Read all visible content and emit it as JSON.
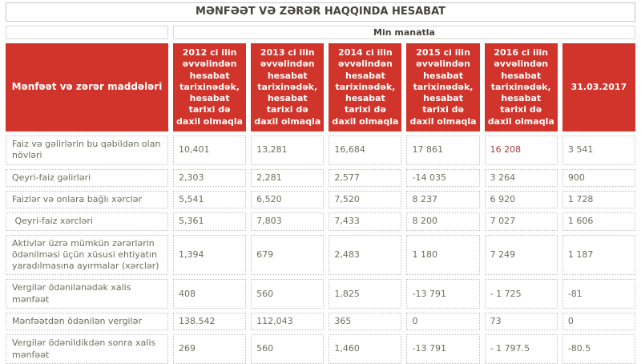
{
  "title": "MƏNFƏƏT VƏ ZƏRƏR HAQQINDA HESABAT",
  "unit_label": "Min manatla",
  "table": {
    "row_header": "Mənfəət və zərər maddələri",
    "col_headers": [
      "2012 ci ilin əvvəlindən hesabat tarixinədək, hesabat tarixi də daxil olmaqla",
      "2013 ci ilin əvvəlindən hesabat tarixinədək, hesabat tarixi də daxil olmaqla",
      "2014 ci ilin əvvəlindən hesabat tarixinədək, hesabat tarixi də daxil olmaqla",
      "2015 ci ilin əvvəlindən hesabat tarixinədək, hesabat tarixi də daxil olmaqla",
      "2016 ci ilin əvvəlindən hesabat tarixinədək, hesabat tarixi də daxil olmaqla",
      "31.03.2017"
    ],
    "rows": [
      {
        "label": "Faiz və gəlirlərin bu qəbildən olan növləri",
        "values": [
          "10,401",
          "13,281",
          "16,684",
          "17 861",
          "16 208",
          "3 541"
        ]
      },
      {
        "label": "Qeyri-faiz gəlirləri",
        "values": [
          "2,303",
          "2,281",
          "2,577",
          "-14 035",
          "3 264",
          "900"
        ]
      },
      {
        "label": "Faizlər və onlara bağlı xərclər",
        "values": [
          "5,541",
          "6,520",
          "7,520",
          "8 237",
          "6 920",
          "1 728"
        ]
      },
      {
        "label": " Qeyri-faiz xərcləri",
        "values": [
          "5,361",
          "7,803",
          "7,433",
          "8 200",
          "7 027",
          "1 606"
        ]
      },
      {
        "label": "Aktivlər üzrə mümkün zərərlərin ödənilməsi üçün xüsusi ehtiyatın yaradılmasına ayırmalar (xərclər)",
        "values": [
          "1,394",
          "679",
          "2,483",
          "1 180",
          "7 249",
          "1 187"
        ]
      },
      {
        "label": "Vergilər ödənilənədək xalis mənfəət",
        "values": [
          "408",
          "560",
          "1,825",
          "-13 791",
          "- 1 725",
          "-81"
        ]
      },
      {
        "label": "Mənfəətdən ödənilən vergilər",
        "values": [
          "138.542",
          "112,043",
          "365",
          "0",
          "73",
          "0"
        ]
      },
      {
        "label": "Vergilər ödənildikdən sonra xalis mənfəət",
        "values": [
          "269",
          "560",
          "1,460",
          "-13 791",
          "- 1 797.5",
          "-80.5"
        ]
      }
    ],
    "highlight": {
      "row": 0,
      "col": 4,
      "color": "#a43b44"
    }
  },
  "colors": {
    "header_bg": "#d1342b",
    "header_text": "#ffffff",
    "body_text": "#6f6e5e",
    "title_text": "#45443b"
  }
}
